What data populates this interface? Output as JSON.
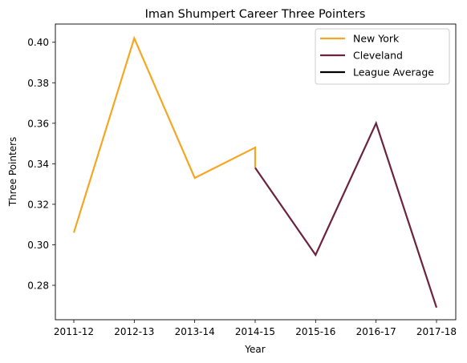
{
  "chart_data": {
    "type": "line",
    "title": "Iman Shumpert Career Three Pointers",
    "xlabel": "Year",
    "ylabel": "Three Pointers",
    "categories": [
      "2011-12",
      "2012-13",
      "2013-14",
      "2014-15",
      "2015-16",
      "2016-17",
      "2017-18"
    ],
    "ylim": [
      0.263,
      0.409
    ],
    "yticks": [
      "0.28",
      "0.30",
      "0.32",
      "0.34",
      "0.36",
      "0.38",
      "0.40"
    ],
    "grid": false,
    "legend_position": "top-right",
    "series": [
      {
        "name": "New York",
        "color": "#f5a623",
        "points": [
          {
            "x": "2011-12",
            "y": 0.306
          },
          {
            "x": "2012-13",
            "y": 0.402
          },
          {
            "x": "2013-14",
            "y": 0.333
          },
          {
            "x": "2014-15",
            "y": 0.348
          },
          {
            "x": "2014-15",
            "y": 0.338
          }
        ]
      },
      {
        "name": "Cleveland",
        "color": "#6b2340",
        "points": [
          {
            "x": "2014-15",
            "y": 0.338
          },
          {
            "x": "2015-16",
            "y": 0.295
          },
          {
            "x": "2016-17",
            "y": 0.36
          },
          {
            "x": "2017-18",
            "y": 0.269
          }
        ]
      },
      {
        "name": "League Average",
        "color": "#000000",
        "points": []
      }
    ]
  }
}
